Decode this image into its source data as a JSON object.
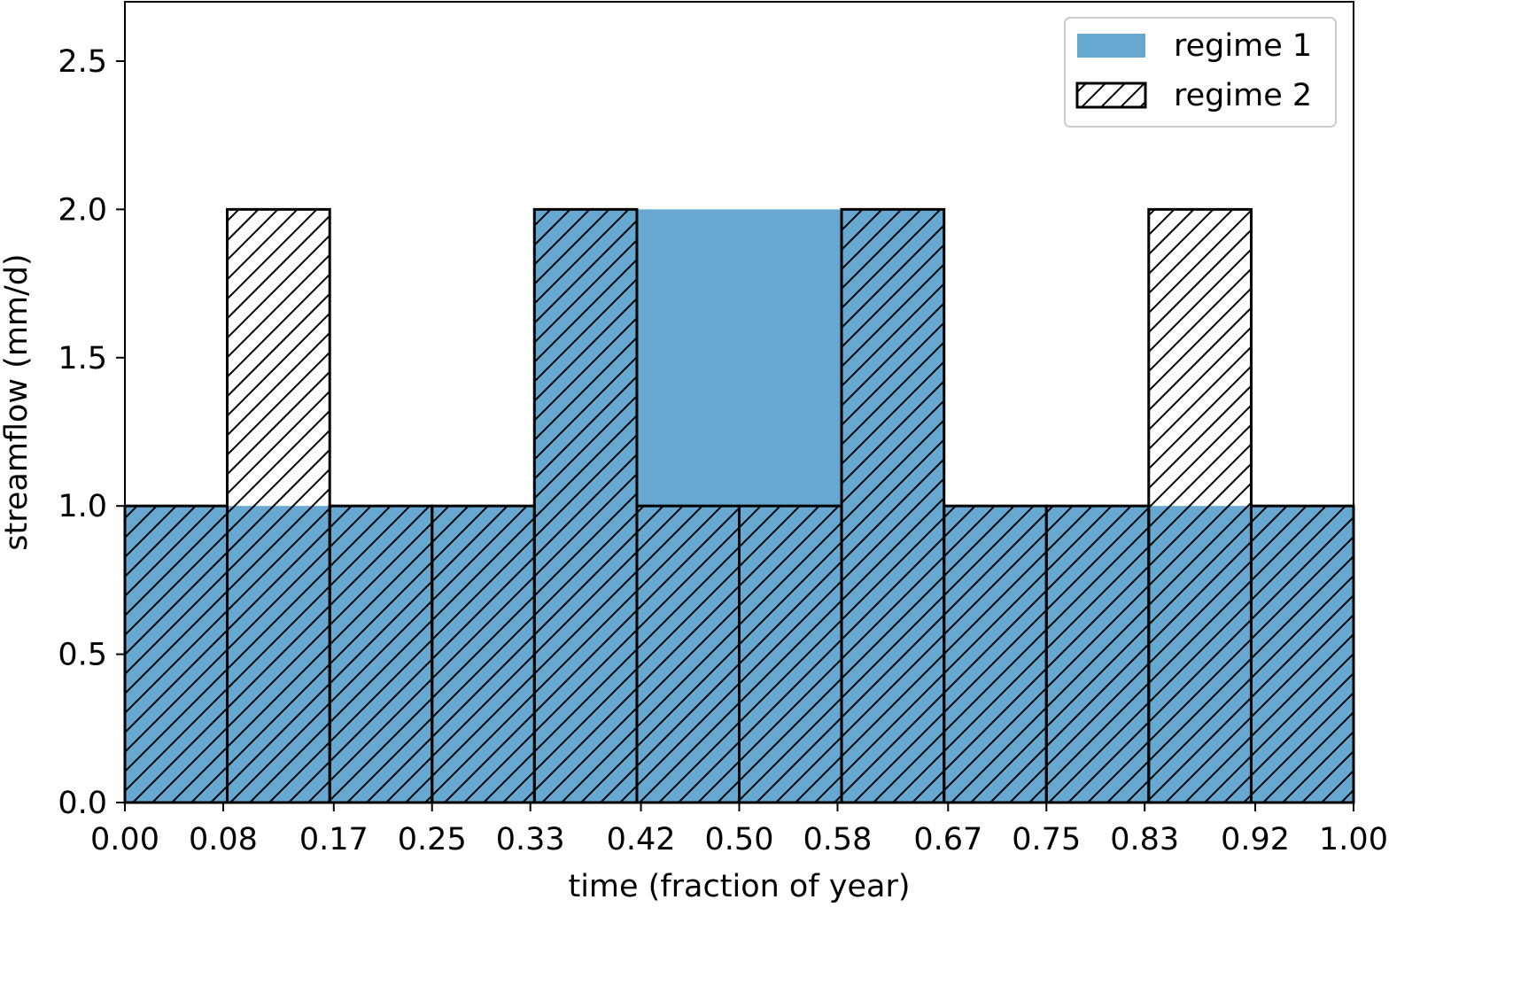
{
  "chart_data": {
    "type": "bar",
    "title": "",
    "xlabel": "time (fraction of year)",
    "ylabel": "streamflow (mm/d)",
    "xlim": [
      0,
      1
    ],
    "ylim": [
      0,
      2.7
    ],
    "x_ticks": [
      "0.00",
      "0.08",
      "0.17",
      "0.25",
      "0.33",
      "0.42",
      "0.50",
      "0.58",
      "0.67",
      "0.75",
      "0.83",
      "0.92",
      "1.00"
    ],
    "y_ticks": [
      "0.0",
      "0.5",
      "1.0",
      "1.5",
      "2.0",
      "2.5"
    ],
    "bin_edges": [
      0,
      0.0833,
      0.1667,
      0.25,
      0.3333,
      0.4167,
      0.5,
      0.5833,
      0.6667,
      0.75,
      0.8333,
      0.9167,
      1.0
    ],
    "grid": false,
    "legend_position": "top-right",
    "series": [
      {
        "name": "regime 1",
        "style": "filled",
        "color": "#66a8d0",
        "values": [
          1,
          1,
          1,
          1,
          2,
          2,
          2,
          2,
          1,
          1,
          1,
          1
        ]
      },
      {
        "name": "regime 2",
        "style": "hatched",
        "color": "#000000",
        "values": [
          1,
          2,
          1,
          1,
          2,
          1,
          1,
          2,
          1,
          1,
          2,
          1
        ]
      }
    ]
  }
}
